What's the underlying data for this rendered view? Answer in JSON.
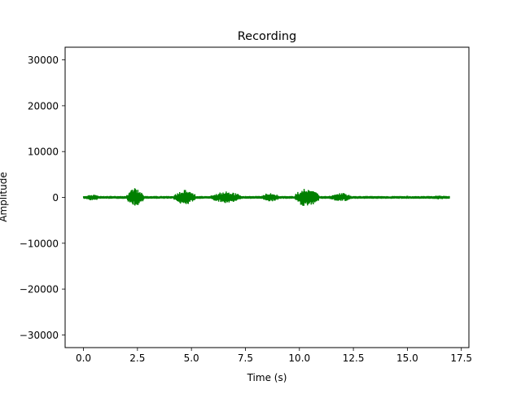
{
  "chart_data": {
    "type": "line",
    "title": "Recording",
    "xlabel": "Time (s)",
    "ylabel": "Amplitude",
    "xlim": [
      -0.85,
      17.85
    ],
    "ylim": [
      -32768,
      32767
    ],
    "xticks": [
      0.0,
      2.5,
      5.0,
      7.5,
      10.0,
      12.5,
      15.0,
      17.5
    ],
    "xtick_labels": [
      "0.0",
      "2.5",
      "5.0",
      "7.5",
      "10.0",
      "12.5",
      "15.0",
      "17.5"
    ],
    "yticks": [
      30000,
      20000,
      10000,
      0,
      -10000,
      -20000,
      -30000
    ],
    "ytick_labels": [
      "30000",
      "20000",
      "10000",
      "0",
      "−10000",
      "−20000",
      "−30000"
    ],
    "grid": false,
    "series": [
      {
        "color": "#008000",
        "x_range": [
          0.0,
          16.95
        ],
        "baseline_amplitude": 300,
        "bursts": [
          {
            "start": 0.1,
            "end": 0.75,
            "peak": 800
          },
          {
            "start": 1.0,
            "end": 1.5,
            "peak": 400
          },
          {
            "start": 2.0,
            "end": 2.8,
            "peak": 2200
          },
          {
            "start": 4.2,
            "end": 5.2,
            "peak": 1700
          },
          {
            "start": 5.9,
            "end": 7.3,
            "peak": 1400
          },
          {
            "start": 8.2,
            "end": 9.1,
            "peak": 1000
          },
          {
            "start": 9.8,
            "end": 10.9,
            "peak": 2200
          },
          {
            "start": 11.4,
            "end": 12.4,
            "peak": 1100
          },
          {
            "start": 14.2,
            "end": 15.7,
            "peak": 350
          },
          {
            "start": 16.0,
            "end": 16.95,
            "peak": 450
          }
        ]
      }
    ]
  }
}
